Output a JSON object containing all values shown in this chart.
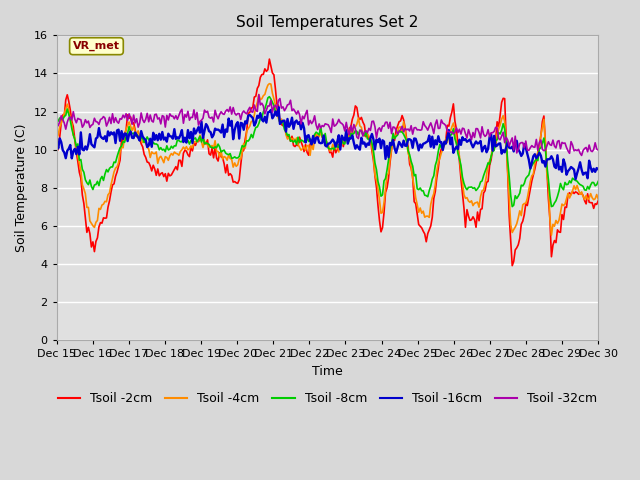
{
  "title": "Soil Temperatures Set 2",
  "xlabel": "Time",
  "ylabel": "Soil Temperature (C)",
  "ylim": [
    0,
    16
  ],
  "yticks": [
    0,
    2,
    4,
    6,
    8,
    10,
    12,
    14,
    16
  ],
  "colors": {
    "Tsoil -2cm": "#ff0000",
    "Tsoil -4cm": "#ff8c00",
    "Tsoil -8cm": "#00cc00",
    "Tsoil -16cm": "#0000cc",
    "Tsoil -32cm": "#aa00aa"
  },
  "bg_color": "#d8d8d8",
  "plot_bg_color": "#e0e0e0",
  "legend_box_facecolor": "#ffffcc",
  "legend_box_edgecolor": "#888800",
  "annotation_text": "VR_met",
  "annotation_color": "#880000",
  "title_fontsize": 11,
  "axis_label_fontsize": 9,
  "tick_fontsize": 8,
  "legend_fontsize": 9
}
